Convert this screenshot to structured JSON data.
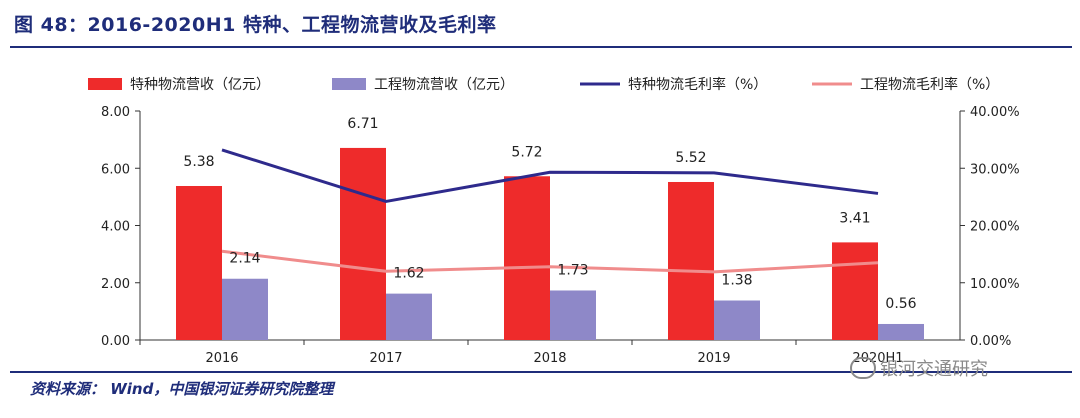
{
  "title": "图 48：2016-2020H1 特种、工程物流营收及毛利率",
  "source": "资料来源： Wind，中国银河证券研究院整理",
  "watermark": "银河交通研究",
  "chart_data": {
    "type": "bar",
    "categories": [
      "2016",
      "2017",
      "2018",
      "2019",
      "2020H1"
    ],
    "series": [
      {
        "name": "特种物流营收（亿元）",
        "kind": "bar",
        "axis": "left",
        "color": "#ee2b2b",
        "values": [
          5.38,
          6.71,
          5.72,
          5.52,
          3.41
        ],
        "labels": [
          "5.38",
          "6.71",
          "5.72",
          "5.52",
          "3.41"
        ]
      },
      {
        "name": "工程物流营收（亿元）",
        "kind": "bar",
        "axis": "left",
        "color": "#8e88c8",
        "values": [
          2.14,
          1.62,
          1.73,
          1.38,
          0.56
        ],
        "labels": [
          "2.14",
          "1.62",
          "1.73",
          "1.38",
          "0.56"
        ]
      },
      {
        "name": "特种物流毛利率（%）",
        "kind": "line",
        "axis": "right",
        "color": "#2e2a8c",
        "values": [
          33.2,
          24.2,
          29.3,
          29.2,
          25.6
        ]
      },
      {
        "name": "工程物流毛利率（%）",
        "kind": "line",
        "axis": "right",
        "color": "#f08c8c",
        "values": [
          15.5,
          12.0,
          12.8,
          11.9,
          13.5
        ]
      }
    ],
    "ylim_left": [
      0,
      8
    ],
    "yticks_left": [
      "0.00",
      "2.00",
      "4.00",
      "6.00",
      "8.00"
    ],
    "ylim_right": [
      0,
      40
    ],
    "yticks_right": [
      "0.00%",
      "10.00%",
      "20.00%",
      "30.00%",
      "40.00%"
    ],
    "legend": "top",
    "grid": false
  }
}
